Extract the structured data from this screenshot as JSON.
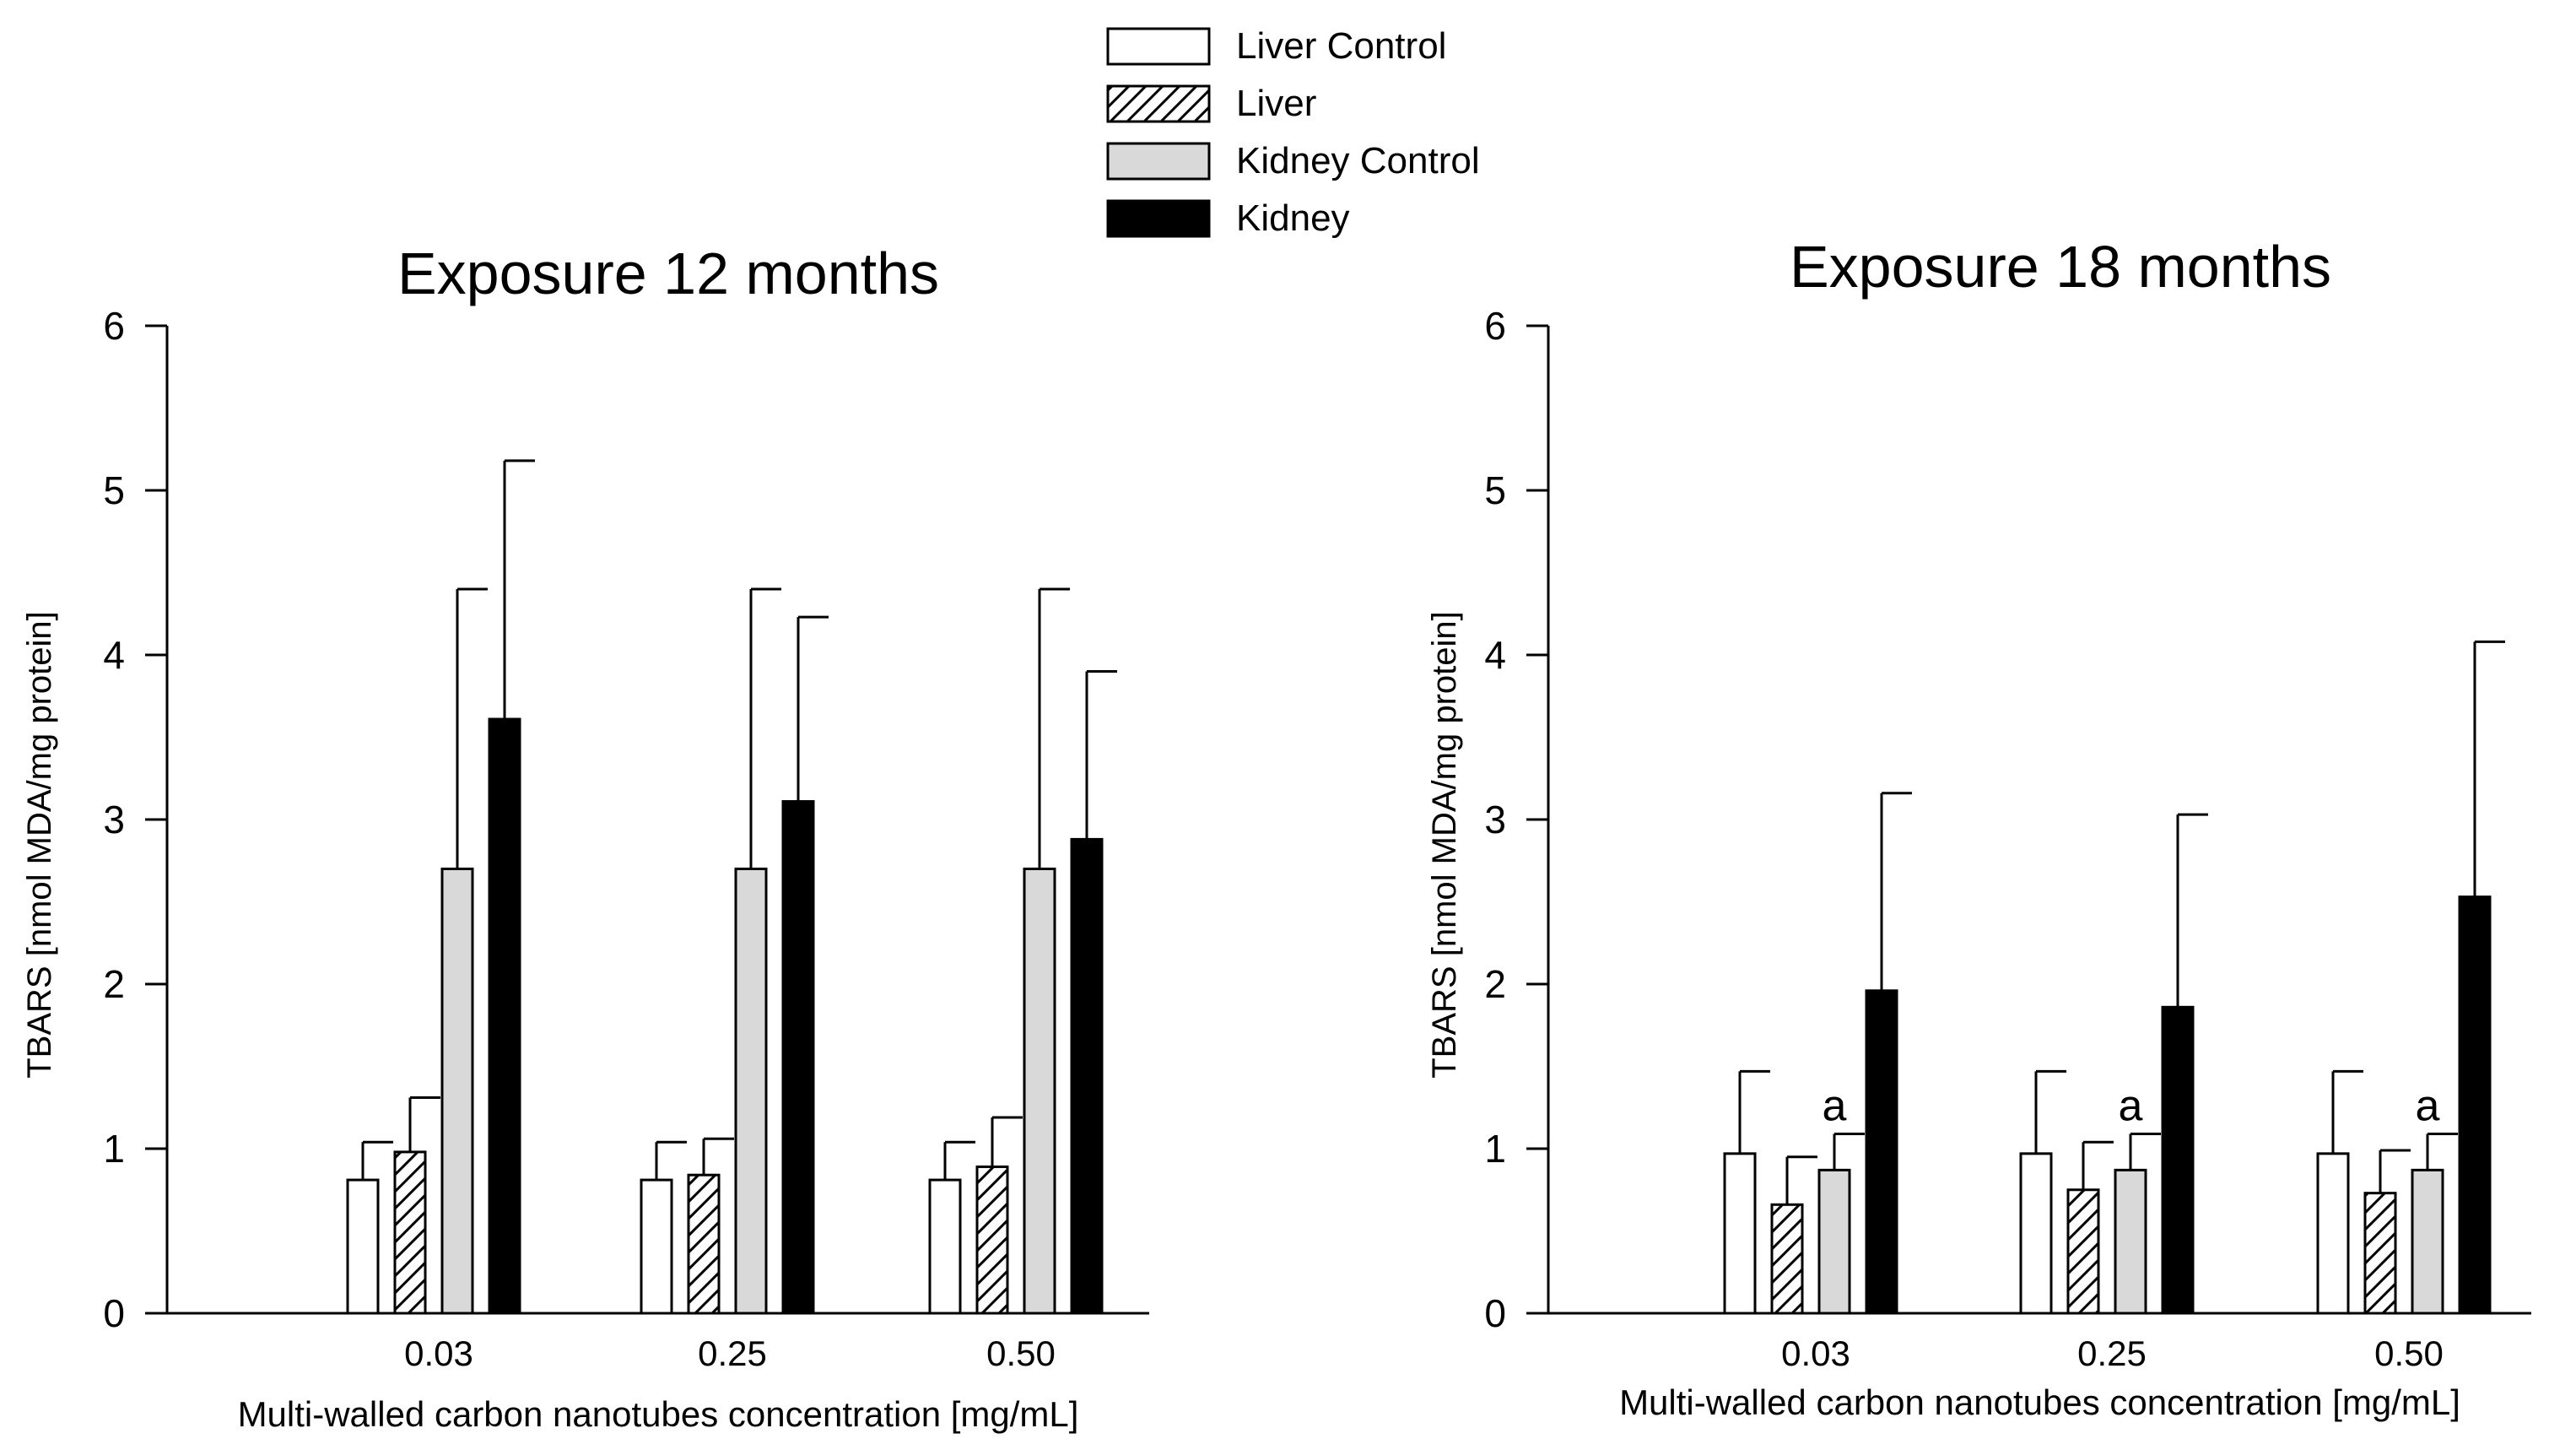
{
  "legend": {
    "entries": [
      {
        "label": "Liver Control",
        "key": "liver_control"
      },
      {
        "label": "Liver",
        "key": "liver"
      },
      {
        "label": "Kidney Control",
        "key": "kidney_control"
      },
      {
        "label": "Kidney",
        "key": "kidney"
      }
    ]
  },
  "series_styles": {
    "liver_control": {
      "fill": "#ffffff",
      "pattern": "none"
    },
    "liver": {
      "fill": "#ffffff",
      "pattern": "hatch"
    },
    "kidney_control": {
      "fill": "#d9d9d9",
      "pattern": "none"
    },
    "kidney": {
      "fill": "#000000",
      "pattern": "none"
    }
  },
  "chart_data": [
    {
      "type": "bar",
      "title": "Exposure 12 months",
      "xlabel": "Multi-walled carbon nanotubes concentration [mg/mL]",
      "ylabel": "TBARS [nmol MDA/mg protein]",
      "ylim": [
        0,
        6
      ],
      "yticks": [
        "0",
        "1",
        "2",
        "3",
        "4",
        "5",
        "6"
      ],
      "categories": [
        "0.03",
        "0.25",
        "0.50"
      ],
      "series": [
        {
          "name": "Liver Control",
          "key": "liver_control",
          "values": [
            0.81,
            0.81,
            0.81
          ],
          "errors": [
            0.23,
            0.23,
            0.23
          ]
        },
        {
          "name": "Liver",
          "key": "liver",
          "values": [
            0.98,
            0.84,
            0.89
          ],
          "errors": [
            0.33,
            0.22,
            0.3
          ]
        },
        {
          "name": "Kidney Control",
          "key": "kidney_control",
          "values": [
            2.7,
            2.7,
            2.7
          ],
          "errors": [
            1.7,
            1.7,
            1.7
          ]
        },
        {
          "name": "Kidney",
          "key": "kidney",
          "values": [
            3.61,
            3.11,
            2.88
          ],
          "errors": [
            1.57,
            1.12,
            1.02
          ]
        }
      ],
      "annotations": []
    },
    {
      "type": "bar",
      "title": "Exposure 18 months",
      "xlabel": "Multi-walled carbon nanotubes concentration [mg/mL]",
      "ylabel": "TBARS [nmol MDA/mg protein]",
      "ylim": [
        0,
        6
      ],
      "yticks": [
        "0",
        "1",
        "2",
        "3",
        "4",
        "5",
        "6"
      ],
      "categories": [
        "0.03",
        "0.25",
        "0.50"
      ],
      "series": [
        {
          "name": "Liver Control",
          "key": "liver_control",
          "values": [
            0.97,
            0.97,
            0.97
          ],
          "errors": [
            0.5,
            0.5,
            0.5
          ]
        },
        {
          "name": "Liver",
          "key": "liver",
          "values": [
            0.66,
            0.75,
            0.73
          ],
          "errors": [
            0.29,
            0.29,
            0.26
          ]
        },
        {
          "name": "Kidney Control",
          "key": "kidney_control",
          "values": [
            0.87,
            0.87,
            0.87
          ],
          "errors": [
            0.22,
            0.22,
            0.22
          ]
        },
        {
          "name": "Kidney",
          "key": "kidney",
          "values": [
            1.96,
            1.86,
            2.53
          ],
          "errors": [
            1.2,
            1.17,
            1.55
          ]
        }
      ],
      "annotations": [
        {
          "text": "a",
          "series": "Kidney Control",
          "category": "0.03"
        },
        {
          "text": "a",
          "series": "Kidney Control",
          "category": "0.25"
        },
        {
          "text": "a",
          "series": "Kidney Control",
          "category": "0.50"
        }
      ]
    }
  ]
}
